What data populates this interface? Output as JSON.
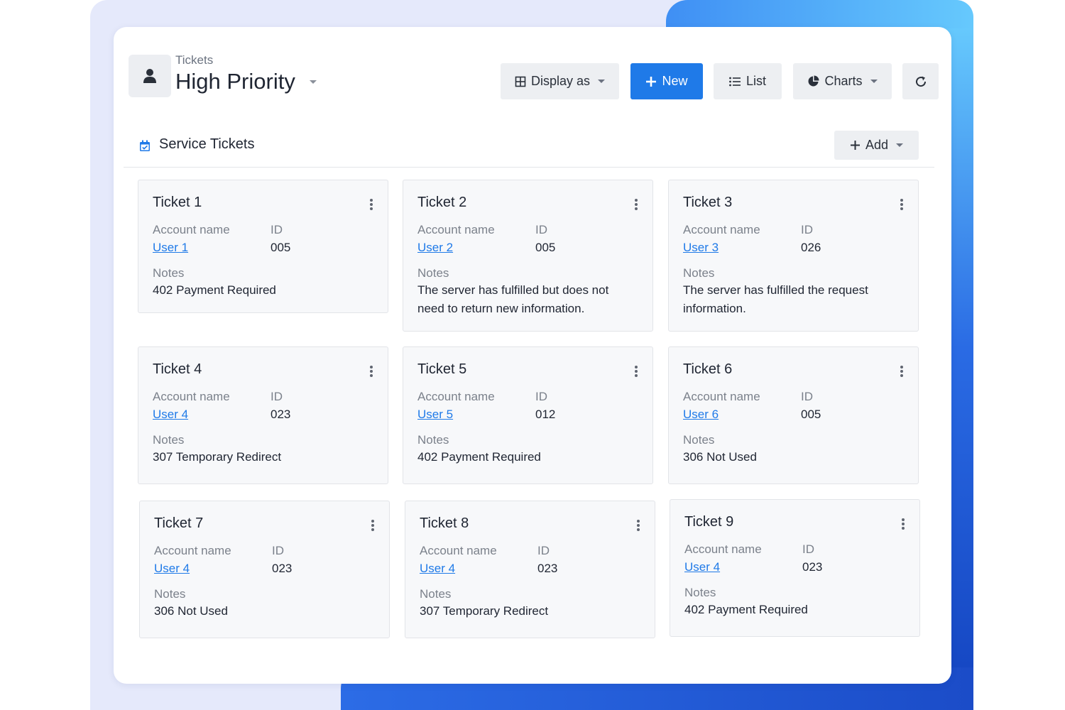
{
  "header": {
    "breadcrumb": "Tickets",
    "title": "High Priority"
  },
  "toolbar": {
    "display_as_label": "Display as",
    "new_label": "New",
    "list_label": "List",
    "charts_label": "Charts"
  },
  "section": {
    "title": "Service Tickets",
    "add_label": "Add"
  },
  "labels": {
    "account_name": "Account name",
    "id": "ID",
    "notes": "Notes"
  },
  "tickets": [
    {
      "title": "Ticket 1",
      "account": "User 1",
      "id": "005",
      "notes": "402 Payment Required"
    },
    {
      "title": "Ticket 2",
      "account": "User 2",
      "id": "005",
      "notes": "The server has fulfilled but does not need to return new information."
    },
    {
      "title": "Ticket 3",
      "account": "User 3",
      "id": "026",
      "notes": "The server has fulfilled the request information."
    },
    {
      "title": "Ticket 4",
      "account": "User 4",
      "id": "023",
      "notes": "307 Temporary Redirect"
    },
    {
      "title": "Ticket 5",
      "account": "User 5",
      "id": "012",
      "notes": "402 Payment Required"
    },
    {
      "title": "Ticket 6",
      "account": "User 6",
      "id": "005",
      "notes": "306 Not Used"
    },
    {
      "title": "Ticket 7",
      "account": "User 4",
      "id": "023",
      "notes": "306 Not Used"
    },
    {
      "title": "Ticket 8",
      "account": "User 4",
      "id": "023",
      "notes": "307 Temporary Redirect"
    },
    {
      "title": "Ticket 9",
      "account": "User 4",
      "id": "023",
      "notes": "402 Payment Required"
    }
  ],
  "colors": {
    "accent": "#1f7ae8",
    "background_panel": "#e5e9fb",
    "background_gradient": "#2261e0"
  }
}
